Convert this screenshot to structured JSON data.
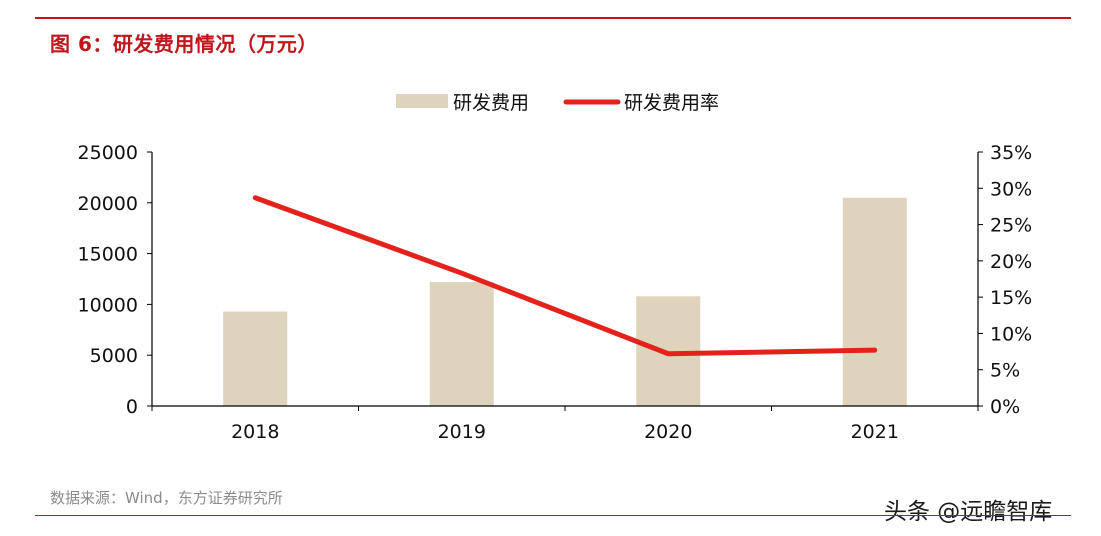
{
  "header": {
    "title": "图 6：研发费用情况（万元）"
  },
  "footer": {
    "source": "数据来源：Wind，东方证券研究所",
    "watermark": "头条 @远瞻智库"
  },
  "colors": {
    "accent": "#c0161b",
    "bar": "#ded4bc",
    "line": "#e3231b"
  },
  "chart_data": {
    "type": "bar",
    "categories": [
      "2018",
      "2019",
      "2020",
      "2021"
    ],
    "series": [
      {
        "name": "研发费用",
        "type": "bar",
        "axis": "left",
        "values": [
          9300,
          12200,
          10800,
          20500
        ]
      },
      {
        "name": "研发费用率",
        "type": "line",
        "axis": "right",
        "values": [
          0.287,
          0.183,
          0.072,
          0.077
        ]
      }
    ],
    "y_left": {
      "range": [
        0,
        25000
      ],
      "ticks": [
        "0",
        "5000",
        "10000",
        "15000",
        "20000",
        "25000"
      ]
    },
    "y_right": {
      "range": [
        0,
        0.35
      ],
      "ticks": [
        "0%",
        "5%",
        "10%",
        "15%",
        "20%",
        "25%",
        "30%",
        "35%"
      ]
    },
    "legend_position": "top-center",
    "grid": false
  }
}
